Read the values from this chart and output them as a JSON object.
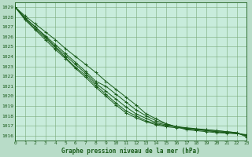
{
  "xlabel": "Graphe pression niveau de la mer (hPa)",
  "bg_color": "#b8dcc8",
  "plot_bg_color": "#c8ecdc",
  "grid_color": "#7aaa7a",
  "line_color": "#1a5c1a",
  "marker": "+",
  "xlim": [
    0,
    23
  ],
  "ylim": [
    1015.5,
    1029.5
  ],
  "xticks": [
    0,
    1,
    2,
    3,
    4,
    5,
    6,
    7,
    8,
    9,
    10,
    11,
    12,
    13,
    14,
    15,
    16,
    17,
    18,
    19,
    20,
    21,
    22,
    23
  ],
  "yticks": [
    1016,
    1017,
    1018,
    1019,
    1020,
    1021,
    1022,
    1023,
    1024,
    1025,
    1026,
    1027,
    1028,
    1029
  ],
  "series": [
    [
      1029.0,
      1028.1,
      1027.3,
      1026.5,
      1025.7,
      1024.8,
      1024.0,
      1023.2,
      1022.4,
      1021.5,
      1020.7,
      1019.9,
      1019.1,
      1018.2,
      1017.7,
      1017.2,
      1016.9,
      1016.6,
      1016.5,
      1016.4,
      1016.3,
      1016.25,
      1016.2,
      1016.1
    ],
    [
      1029.0,
      1027.9,
      1027.0,
      1026.1,
      1025.2,
      1024.3,
      1023.4,
      1022.5,
      1021.5,
      1021.0,
      1020.2,
      1019.4,
      1018.6,
      1018.0,
      1017.5,
      1017.2,
      1016.9,
      1016.7,
      1016.6,
      1016.5,
      1016.4,
      1016.3,
      1016.2,
      1016.05
    ],
    [
      1029.0,
      1027.9,
      1027.0,
      1026.0,
      1025.0,
      1024.1,
      1023.2,
      1022.3,
      1021.3,
      1020.5,
      1019.7,
      1018.9,
      1018.2,
      1017.75,
      1017.3,
      1017.1,
      1016.9,
      1016.75,
      1016.65,
      1016.5,
      1016.4,
      1016.3,
      1016.25,
      1016.0
    ],
    [
      1029.0,
      1027.8,
      1026.8,
      1025.9,
      1024.9,
      1023.9,
      1022.9,
      1022.1,
      1021.1,
      1020.2,
      1019.3,
      1018.5,
      1018.0,
      1017.5,
      1017.2,
      1017.0,
      1016.9,
      1016.8,
      1016.7,
      1016.6,
      1016.5,
      1016.4,
      1016.3,
      1015.95
    ],
    [
      1029.0,
      1027.7,
      1026.7,
      1025.7,
      1024.7,
      1023.8,
      1022.8,
      1021.9,
      1020.9,
      1020.0,
      1019.1,
      1018.3,
      1017.8,
      1017.4,
      1017.1,
      1016.9,
      1016.8,
      1016.75,
      1016.65,
      1016.6,
      1016.5,
      1016.4,
      1016.3,
      1015.85
    ]
  ]
}
